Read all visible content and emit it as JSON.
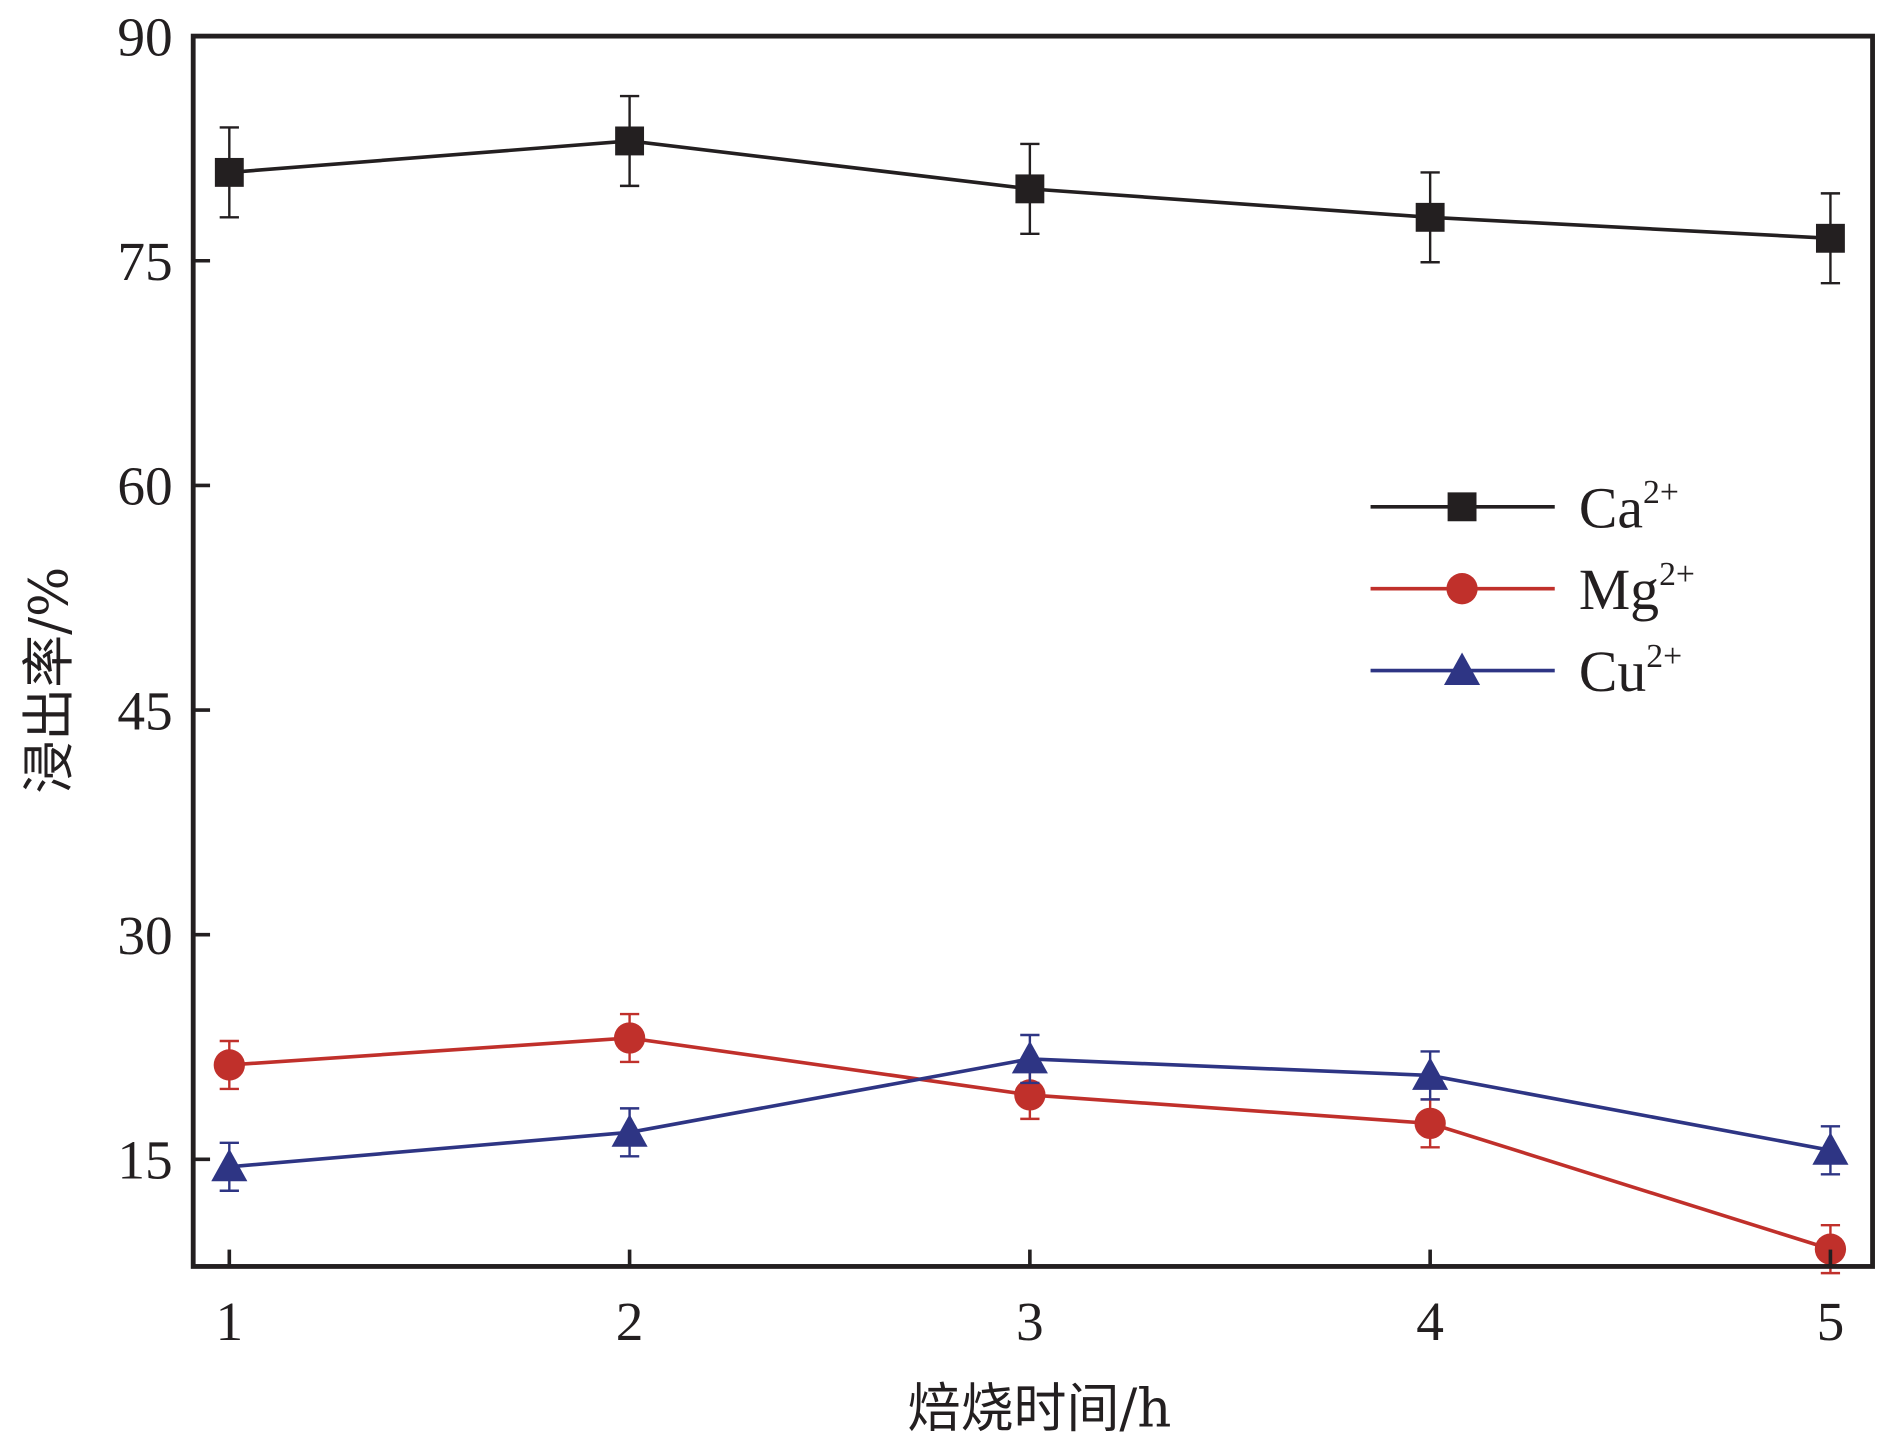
{
  "chart_data": {
    "type": "line",
    "title": "",
    "xlabel": "焙烧时间/h",
    "ylabel": "浸出率/%",
    "x": [
      1,
      2,
      3,
      4,
      5
    ],
    "x_ticks": [
      "1",
      "2",
      "3",
      "4",
      "5"
    ],
    "y_ticks": [
      "15",
      "30",
      "45",
      "60",
      "75",
      "90"
    ],
    "y_tick_values": [
      15,
      30,
      45,
      60,
      75,
      90
    ],
    "xlim": [
      0.91,
      5.1
    ],
    "ylim": [
      7.8,
      90
    ],
    "grid": false,
    "legend_position": "center-right",
    "series": [
      {
        "name": "Ca",
        "sup": "2+",
        "marker": "square",
        "color": "#231f20",
        "values": [
          80.9,
          83.0,
          79.8,
          77.9,
          76.5
        ],
        "errors": [
          3.0,
          3.0,
          3.0,
          3.0,
          3.0
        ]
      },
      {
        "name": "Mg",
        "sup": "2+",
        "marker": "circle",
        "color": "#c0302b",
        "values": [
          21.3,
          23.1,
          19.3,
          17.4,
          9.0
        ],
        "errors": [
          1.6,
          1.6,
          1.6,
          1.6,
          1.6
        ]
      },
      {
        "name": "Cu",
        "sup": "2+",
        "marker": "triangle",
        "color": "#2e3584",
        "values": [
          14.5,
          16.8,
          21.7,
          20.6,
          15.6
        ],
        "errors": [
          1.6,
          1.6,
          1.6,
          1.6,
          1.6
        ]
      }
    ]
  }
}
